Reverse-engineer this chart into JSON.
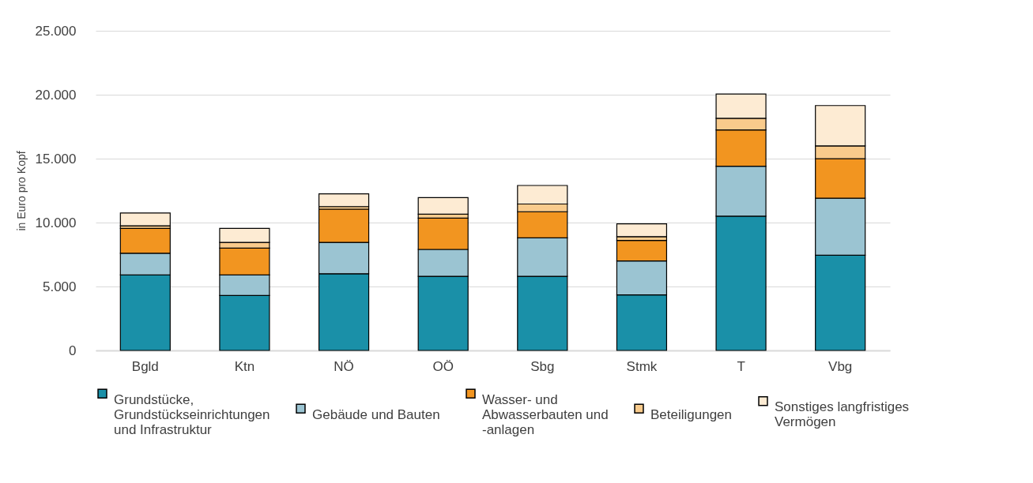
{
  "chart_data": {
    "type": "bar",
    "stacked": true,
    "ylabel": "in Euro pro Kopf",
    "categories": [
      "Bgld",
      "Ktn",
      "NÖ",
      "OÖ",
      "Sbg",
      "Stmk",
      "T",
      "Vbg"
    ],
    "series": [
      {
        "name": "Grundstücke, Grundstückseinrichtungen und Infrastruktur",
        "color": "#1a90a8",
        "values": [
          5900,
          4300,
          6000,
          5800,
          5800,
          4350,
          10500,
          7450
        ]
      },
      {
        "name": "Gebäude und Bauten",
        "color": "#9bc4d2",
        "values": [
          1700,
          1600,
          2450,
          2100,
          3000,
          2650,
          3900,
          4450
        ]
      },
      {
        "name": "Wasser- und Abwasserbauten und -anlagen",
        "color": "#f29520",
        "values": [
          1950,
          2100,
          2600,
          2450,
          2050,
          1600,
          2850,
          3100
        ]
      },
      {
        "name": "Beteiligungen",
        "color": "#f9cb8c",
        "values": [
          200,
          450,
          200,
          300,
          600,
          300,
          900,
          1000
        ]
      },
      {
        "name": "Sonstiges langfristiges Vermögen",
        "color": "#fdebd3",
        "values": [
          1000,
          1100,
          1000,
          1300,
          1450,
          1000,
          1900,
          3150
        ]
      }
    ],
    "ylim": [
      0,
      25000
    ],
    "yticks": [
      0,
      {
        "value": 5000,
        "label": "5.000"
      },
      {
        "value": 10000,
        "label": "10.000"
      },
      {
        "value": 15000,
        "label": "15.000"
      },
      {
        "value": 20000,
        "label": "20.000"
      },
      {
        "value": 25000,
        "label": "25.000"
      }
    ],
    "grid": "y",
    "legend": "bottom"
  }
}
